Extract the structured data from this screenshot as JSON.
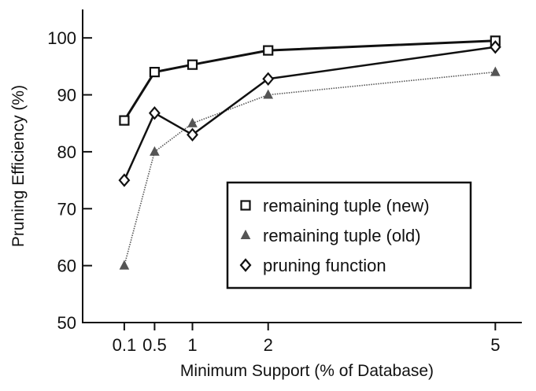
{
  "chart_data": {
    "type": "line",
    "title": "",
    "xlabel": "Minimum Support (% of Database)",
    "ylabel": "Pruning Efficiency (%)",
    "xlim": [
      -0.45,
      5.35
    ],
    "ylim": [
      50,
      105
    ],
    "x_ticks": [
      0.1,
      0.5,
      1,
      2,
      5
    ],
    "x_tick_labels": [
      "0.1",
      "0.5",
      "1",
      "2",
      "5"
    ],
    "y_ticks": [
      50,
      60,
      70,
      80,
      90,
      100
    ],
    "y_tick_labels": [
      "50",
      "60",
      "70",
      "80",
      "90",
      "100"
    ],
    "grid": false,
    "legend_position": "bottom-right",
    "series": [
      {
        "name": "remaining tuple (new)",
        "marker": "square",
        "color": "#111111",
        "x": [
          0.1,
          0.5,
          1,
          2,
          5
        ],
        "y": [
          85.5,
          94,
          95.3,
          97.8,
          99.5
        ]
      },
      {
        "name": "remaining tuple (old)",
        "marker": "triangle",
        "color": "#555555",
        "x": [
          0.1,
          0.5,
          1,
          2,
          5
        ],
        "y": [
          60,
          80,
          85,
          90,
          94
        ]
      },
      {
        "name": "pruning function",
        "marker": "diamond",
        "color": "#111111",
        "x": [
          0.1,
          0.5,
          1,
          2,
          5
        ],
        "y": [
          75,
          86.8,
          83,
          92.8,
          98.4
        ]
      }
    ]
  }
}
